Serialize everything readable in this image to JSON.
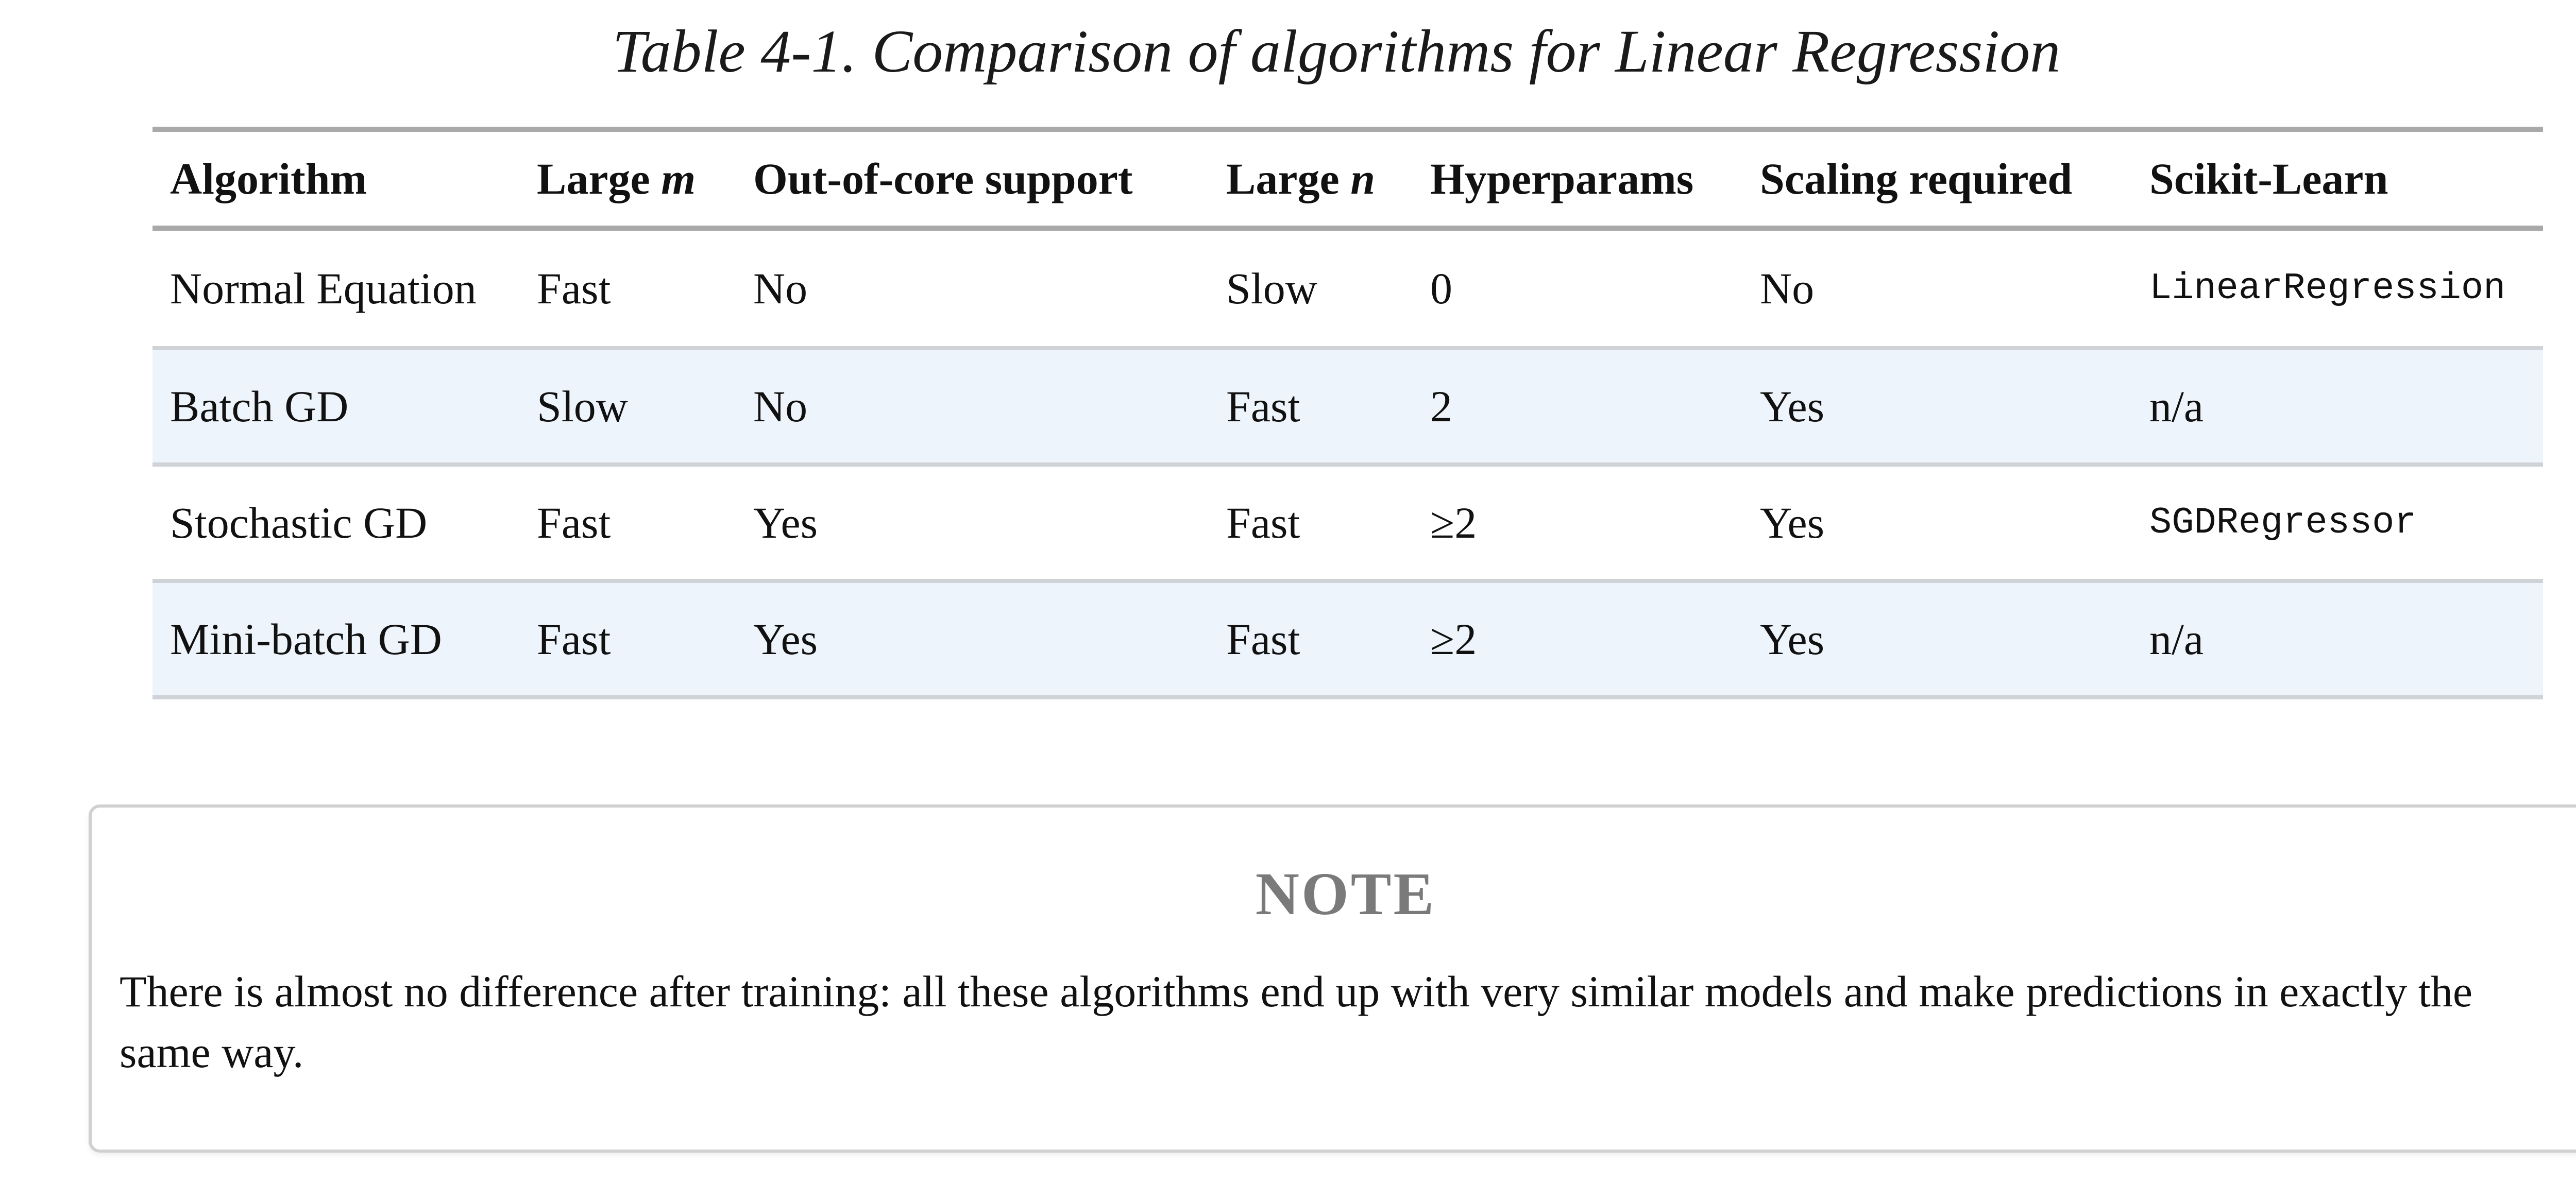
{
  "caption": "Table 4-1. Comparison of algorithms for Linear Regression",
  "table": {
    "headers": {
      "algorithm": "Algorithm",
      "large_m_prefix": "Large ",
      "large_m_var": "m",
      "out_of_core": "Out-of-core support",
      "large_n_prefix": "Large ",
      "large_n_var": "n",
      "hyperparams": "Hyperparams",
      "scaling": "Scaling required",
      "sklearn": "Scikit-Learn"
    },
    "rows": [
      [
        "Normal Equation",
        "Fast",
        "No",
        "Slow",
        "0",
        "No",
        "LinearRegression"
      ],
      [
        "Batch GD",
        "Slow",
        "No",
        "Fast",
        "2",
        "Yes",
        "n/a"
      ],
      [
        "Stochastic GD",
        "Fast",
        "Yes",
        "Fast",
        "≥2",
        "Yes",
        "SGDRegressor"
      ],
      [
        "Mini-batch GD",
        "Fast",
        "Yes",
        "Fast",
        "≥2",
        "Yes",
        "n/a"
      ]
    ]
  },
  "note": {
    "title": "NOTE",
    "body": "There is almost no difference after training: all these algorithms end up with very similar models and make predictions in exactly the same way."
  },
  "colors": {
    "rule": "#a9a9a9",
    "alt_row": "#eef4fb",
    "note_title": "#7a7a7a"
  }
}
